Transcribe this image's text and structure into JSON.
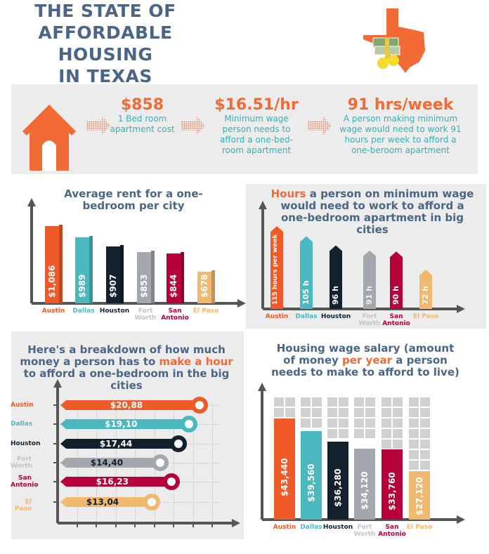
{
  "header": {
    "title_lines": [
      "THE STATE OF",
      "AFFORDABLE HOUSING",
      "IN TEXAS"
    ]
  },
  "summary": [
    {
      "value": "$858",
      "desc": "1 Bed room apartment cost"
    },
    {
      "value": "$16.51/hr",
      "desc": "Minimum wage person needs to afford a one-bed-room apartment"
    },
    {
      "value": "91 hrs/week",
      "desc": "A person making minimum wage would need to work 91 hours per week to afford a one-beroom apartment"
    }
  ],
  "colors": {
    "title": "#4a6585",
    "accent": "#f26a36",
    "teal": "#3aafb2",
    "panel": "#ececec"
  },
  "cities": [
    {
      "name": "Austin",
      "color": "#f05a28",
      "label_color": "#f05a28"
    },
    {
      "name": "Dallas",
      "color": "#4bb8bf",
      "label_color": "#4bb8bf"
    },
    {
      "name": "Houston",
      "color": "#13212e",
      "label_color": "#13212e"
    },
    {
      "name": "Fort Worth",
      "color": "#a3a8ae",
      "label_color": "#c0c4c8"
    },
    {
      "name": "San Antonio",
      "color": "#b5003a",
      "label_color": "#b5003a"
    },
    {
      "name": "El Paso",
      "color": "#f1b970",
      "label_color": "#f1b970"
    }
  ],
  "chart_data": [
    {
      "type": "bar",
      "title": "Average rent for a one-bedroom per city",
      "categories": [
        "Austin",
        "Dallas",
        "Houston",
        "Fort Worth",
        "San Antonio",
        "El Paso"
      ],
      "values": [
        1086,
        989,
        907,
        853,
        844,
        678
      ],
      "data_labels": [
        "$1,086",
        "$989",
        "$907",
        "$853",
        "$844",
        "$678"
      ]
    },
    {
      "type": "bar",
      "title_highlight": "Hours",
      "title": " a person on minimum wage would need to work to afford a one-bedroom apartment in big cities",
      "categories": [
        "Austin",
        "Dallas",
        "Houston",
        "Fort Worth",
        "San Antonio",
        "El Paso"
      ],
      "values": [
        115,
        105,
        96,
        91,
        90,
        72
      ],
      "data_labels": [
        "115 hours per week",
        "105 h",
        "96 h",
        "91 h",
        "90 h",
        "72 h"
      ]
    },
    {
      "type": "bar",
      "orientation": "horizontal",
      "title_pre": "Here's a breakdown of how much money a person has to ",
      "title_highlight": "make a hour",
      "title_post": " to afford a one-bedroom in the big cities",
      "categories": [
        "Austin",
        "Dallas",
        "Houston",
        "Fort Worth",
        "San Antonio",
        "El Paso"
      ],
      "values": [
        20.88,
        19.1,
        17.44,
        14.4,
        16.23,
        13.04
      ],
      "data_labels": [
        "$20,88",
        "$19,10",
        "$17,44",
        "$14,40",
        "$16,23",
        "$13,04"
      ],
      "grid": true
    },
    {
      "type": "bar",
      "title_pre": "Housing wage salary (amount of money ",
      "title_highlight": "per year",
      "title_post": " a person needs to make to afford to live)",
      "categories": [
        "Austin",
        "Dallas",
        "Houston",
        "Fort Worth",
        "San Antonio",
        "El Paso"
      ],
      "values": [
        43440,
        39560,
        36280,
        34120,
        33760,
        27120
      ],
      "data_labels": [
        "$43,440",
        "$39,560",
        "$36,280",
        "$34,120",
        "$33,760",
        "$27,120"
      ]
    }
  ]
}
